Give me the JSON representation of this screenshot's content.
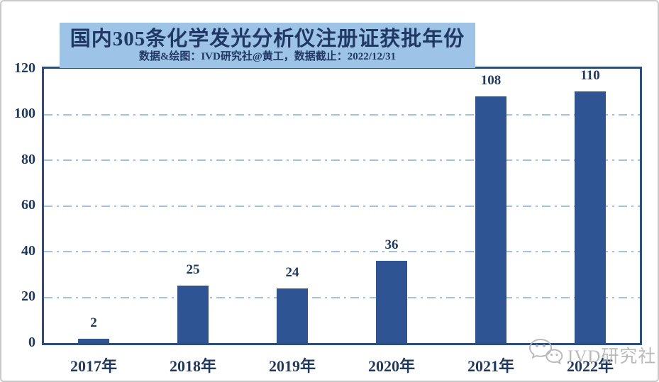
{
  "page": {
    "background": "#ffffff",
    "outer_border_color": "#c9c9c9"
  },
  "header": {
    "title": "国内305条化学发光分析仪注册证获批年份",
    "subtitle": "数据&绘图：IVD研究社@黄工，数据截止：2022/12/31",
    "box_bg": "#9DC3E6",
    "text_color": "#1F3864"
  },
  "watermark": {
    "icon": "wechat-icon",
    "label": "IVD研究社",
    "color": "#b3b3b3"
  },
  "chart_data": {
    "type": "bar",
    "title": "国内305条化学发光分析仪注册证获批年份",
    "subtitle": "数据&绘图：IVD研究社@黄工，数据截止：2022/12/31",
    "categories": [
      "2017年",
      "2018年",
      "2019年",
      "2020年",
      "2021年",
      "2022年"
    ],
    "values": [
      2,
      25,
      24,
      36,
      108,
      110
    ],
    "total_mentioned_in_title": 305,
    "xlabel": "",
    "ylabel": "",
    "ylim": [
      0,
      120
    ],
    "yticks": [
      0,
      20,
      40,
      60,
      80,
      100,
      120
    ],
    "grid": "horizontal dash-dot",
    "legend": "none",
    "bar_color": "#2E5494",
    "axis_color": "#2b4d86",
    "grid_color": "#9DC3E6",
    "label_color": "#1F3864"
  }
}
